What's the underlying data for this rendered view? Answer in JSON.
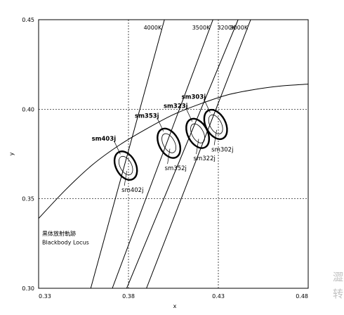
{
  "chart_data": {
    "type": "scatter",
    "xlabel": "x",
    "ylabel": "y",
    "xlim": [
      0.33,
      0.48
    ],
    "ylim": [
      0.3,
      0.45
    ],
    "x_ticks": [
      "0.33",
      "0.38",
      "0.43",
      "0.48"
    ],
    "y_ticks": [
      "0.30",
      "0.35",
      "0.40",
      "0.45"
    ],
    "grid": "dashed at x=0.38, x=0.43, y=0.35, y=0.40",
    "blackbody_locus": {
      "label_ja": "黒体放射軌跡",
      "label_en": "Blackbody Locus",
      "x": [
        0.33,
        0.345,
        0.36,
        0.375,
        0.39,
        0.405,
        0.42,
        0.435,
        0.45,
        0.465,
        0.48
      ],
      "y": [
        0.339,
        0.355,
        0.369,
        0.38,
        0.389,
        0.397,
        0.403,
        0.408,
        0.411,
        0.413,
        0.414
      ]
    },
    "isotemperature_lines": [
      {
        "label": "4000K",
        "x": [
          0.359,
          0.4
        ],
        "y": [
          0.3,
          0.45
        ]
      },
      {
        "label": "3500K",
        "x": [
          0.371,
          0.427
        ],
        "y": [
          0.3,
          0.45
        ]
      },
      {
        "label": "3200K",
        "x": [
          0.379,
          0.441
        ],
        "y": [
          0.3,
          0.45
        ]
      },
      {
        "label": "3000K",
        "x": [
          0.39,
          0.448
        ],
        "y": [
          0.3,
          0.45
        ]
      }
    ],
    "ellipses": [
      {
        "outer_label": "sm403j",
        "inner_label": "sm402j",
        "cx": 0.3785,
        "cy": 0.3685,
        "rx": 0.0055,
        "ry": 0.0085,
        "tilt": 62
      },
      {
        "outer_label": "sm353j",
        "inner_label": "sm352j",
        "cx": 0.4025,
        "cy": 0.381,
        "rx": 0.0055,
        "ry": 0.0088,
        "tilt": 62
      },
      {
        "outer_label": "sm323j",
        "inner_label": "sm322j",
        "cx": 0.4185,
        "cy": 0.3865,
        "rx": 0.0055,
        "ry": 0.0088,
        "tilt": 62
      },
      {
        "outer_label": "sm303j",
        "inner_label": "sm302j",
        "cx": 0.4285,
        "cy": 0.3915,
        "rx": 0.0055,
        "ry": 0.0088,
        "tilt": 62
      }
    ]
  },
  "watermark": [
    "澀",
    "转"
  ]
}
